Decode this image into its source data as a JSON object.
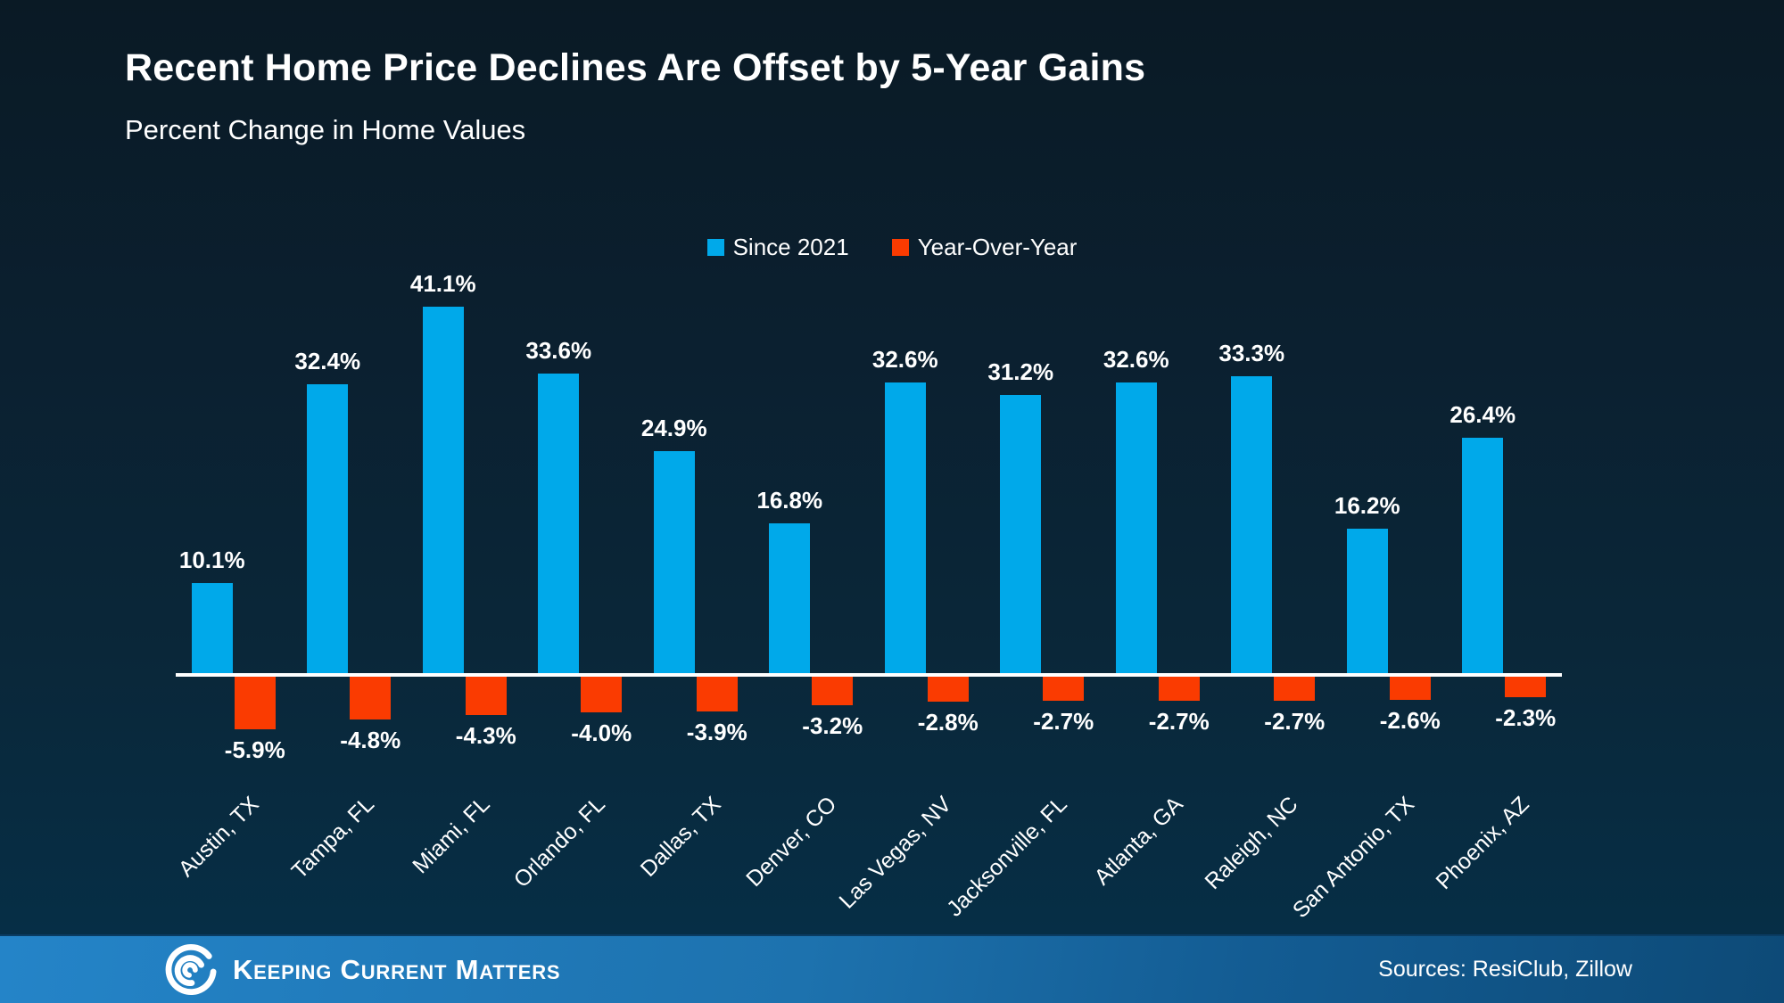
{
  "title": "Recent Home Price Declines Are Offset by 5-Year Gains",
  "subtitle": "Percent Change in Home Values",
  "chart_data": {
    "type": "bar",
    "title": "Percent Change in Home Values",
    "categories": [
      "Austin, TX",
      "Tampa, FL",
      "Miami, FL",
      "Orlando, FL",
      "Dallas, TX",
      "Denver, CO",
      "Las Vegas, NV",
      "Jacksonville, FL",
      "Atlanta, GA",
      "Raleigh, NC",
      "San Antonio, TX",
      "Phoenix, AZ"
    ],
    "series": [
      {
        "name": "Since 2021",
        "color": "#00a9ea",
        "values": [
          10.1,
          32.4,
          41.1,
          33.6,
          24.9,
          16.8,
          32.6,
          31.2,
          32.6,
          33.3,
          16.2,
          26.4
        ]
      },
      {
        "name": "Year-Over-Year",
        "color": "#fa3b01",
        "values": [
          -5.9,
          -4.8,
          -4.3,
          -4.0,
          -3.9,
          -3.2,
          -2.8,
          -2.7,
          -2.7,
          -2.7,
          -2.6,
          -2.3
        ]
      }
    ],
    "value_suffix": "%",
    "value_labels": "every bar labeled, one decimal place",
    "baseline": 0,
    "ylim": [
      -6,
      42
    ],
    "grid": false,
    "axis_line_color": "#ffffff",
    "legend_position": "top-center",
    "x_tick_rotation_deg": -45
  },
  "footer": {
    "brand": "Keeping Current Matters",
    "logo": "kcm-swirl-icon",
    "sources": "Sources: ResiClub, Zillow"
  },
  "colors": {
    "background_top": "#0a1a25",
    "background_bottom": "#053049",
    "bar_positive": "#00a9ea",
    "bar_negative": "#fa3b01",
    "axis_line": "#ffffff",
    "text": "#ffffff",
    "footer_gradient_left": "#2484c8",
    "footer_gradient_right": "#0d4a77"
  }
}
